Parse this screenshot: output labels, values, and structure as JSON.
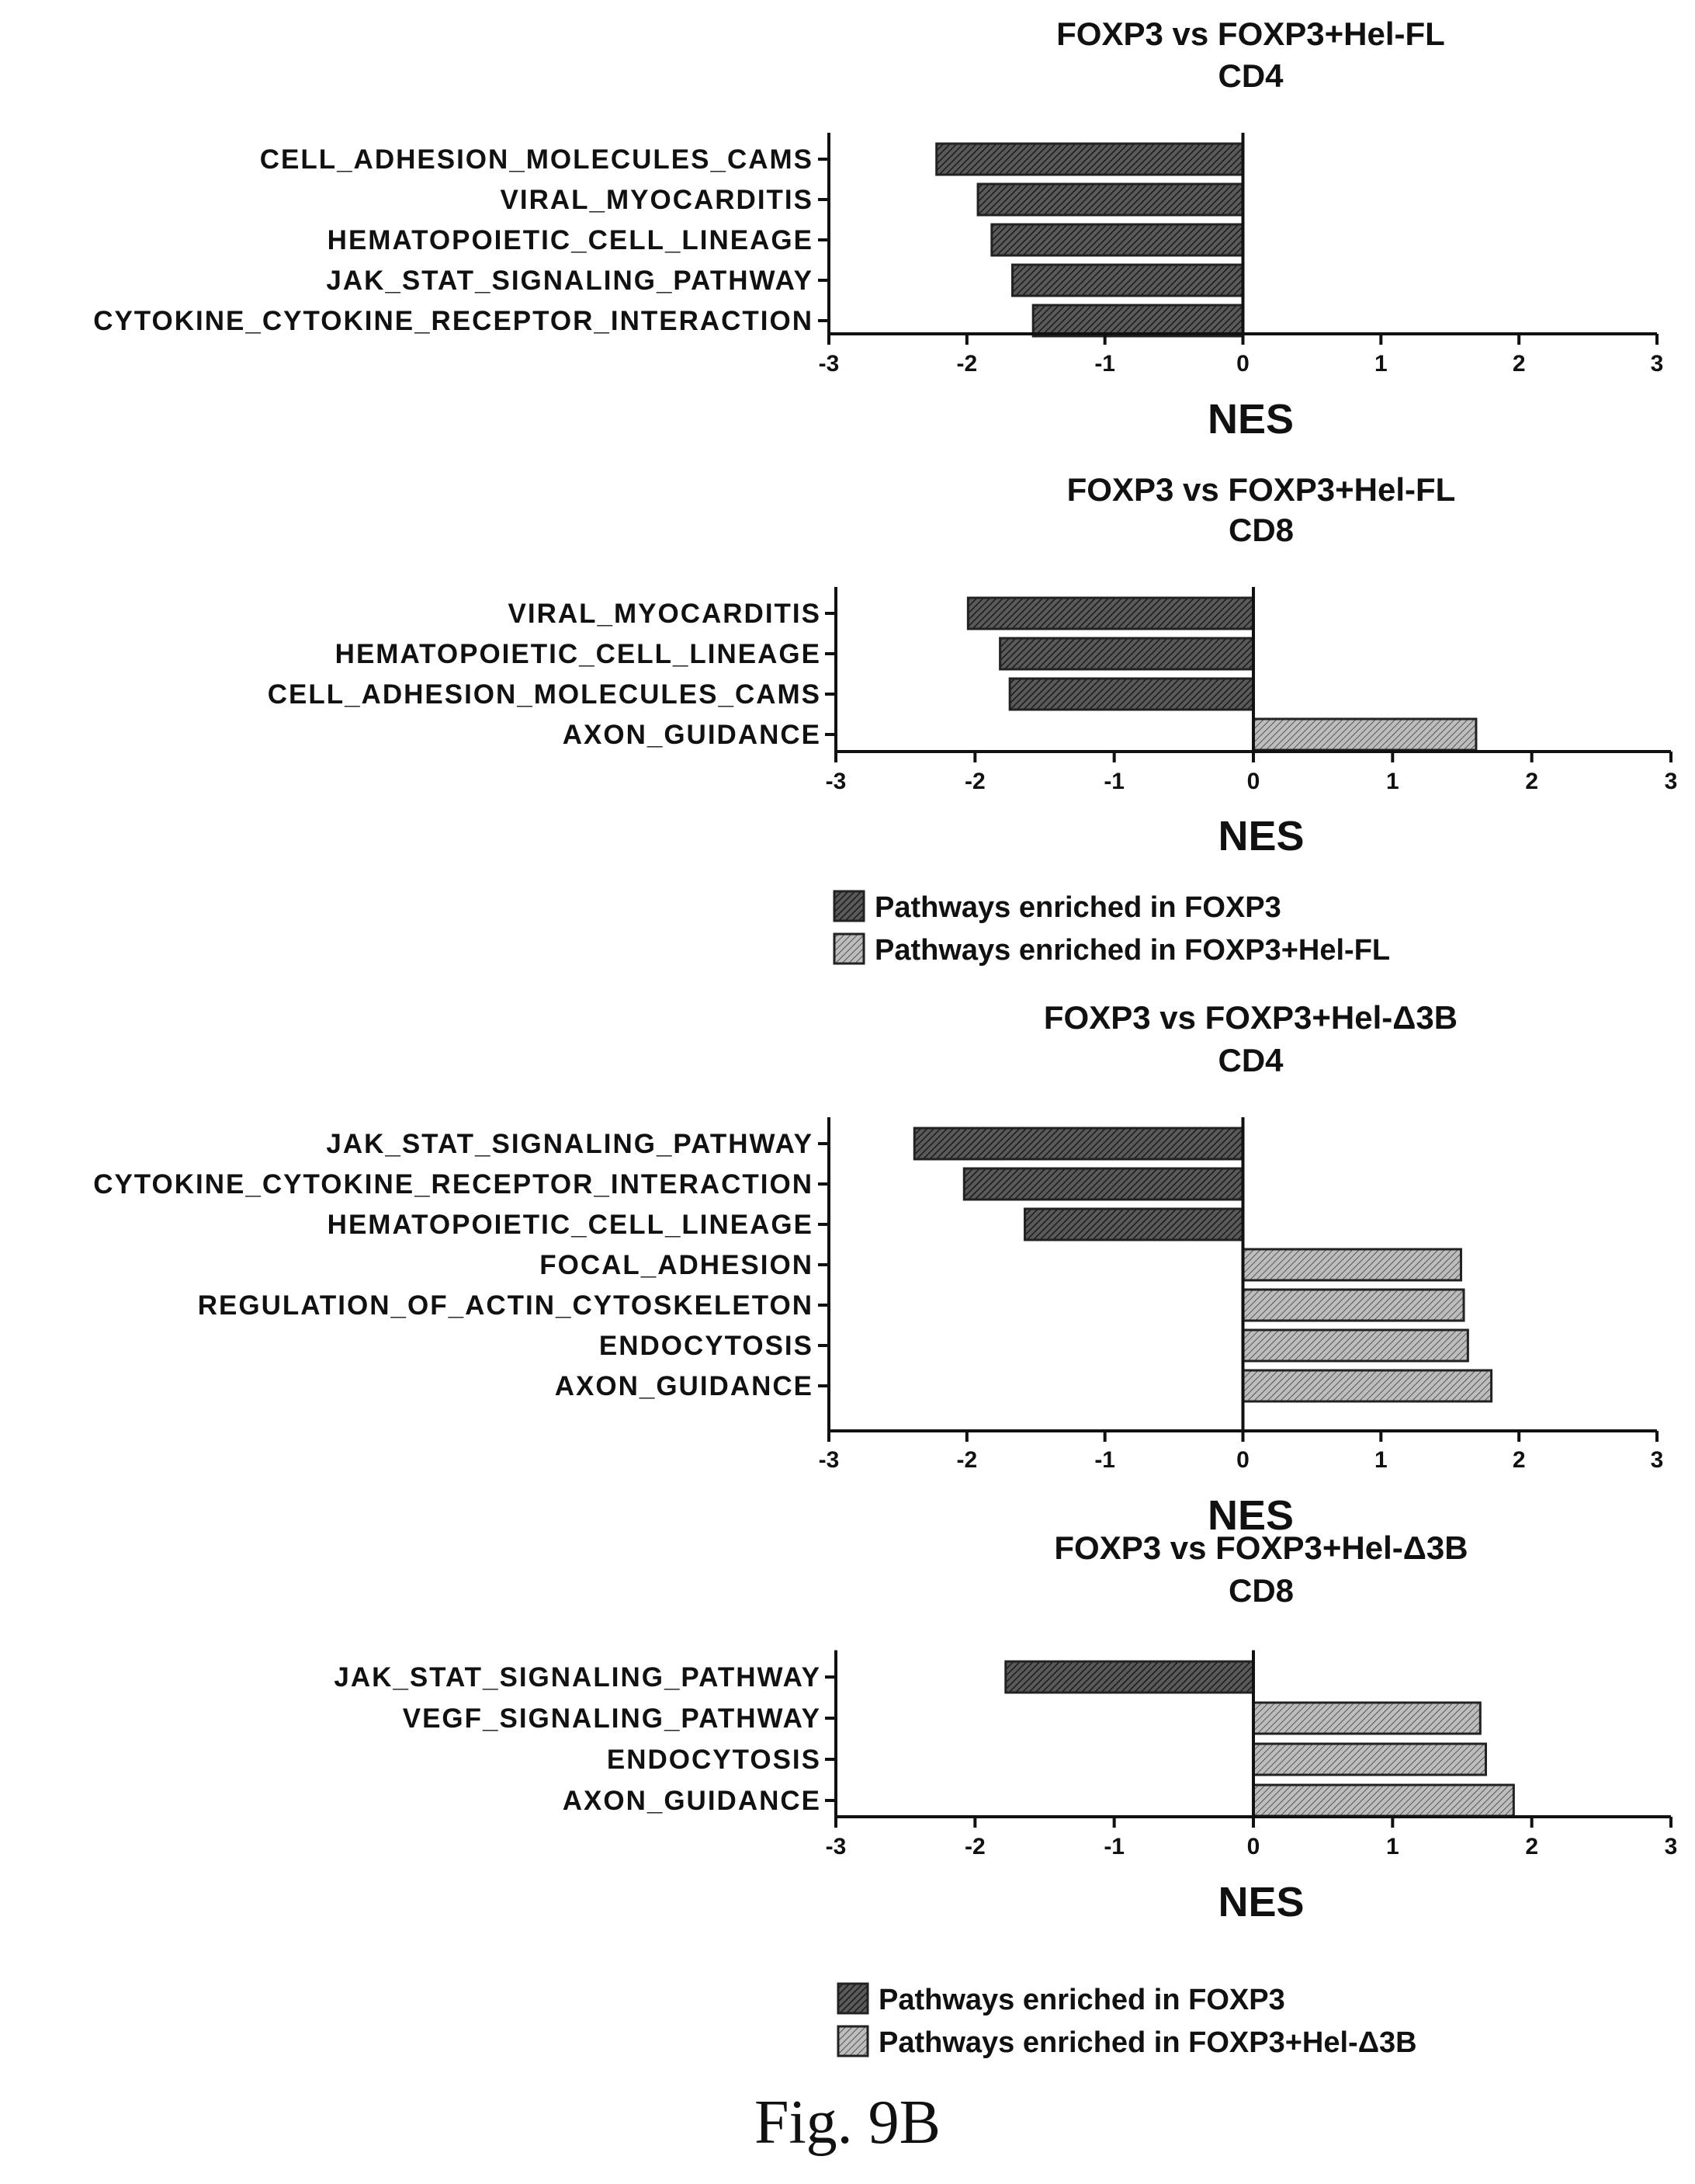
{
  "caption": "Fig. 9B",
  "colors": {
    "dark_bar": "#3a3a3a",
    "light_bar": "#8c8c8c",
    "axis": "#111111"
  },
  "legends": [
    {
      "items": [
        "Pathways enriched in FOXP3",
        "Pathways enriched in FOXP3+Hel-FL"
      ]
    },
    {
      "items": [
        "Pathways enriched in FOXP3",
        "Pathways enriched in FOXP3+Hel-Δ3B"
      ]
    }
  ],
  "chart_data": [
    {
      "type": "bar",
      "orientation": "horizontal",
      "title": "FOXP3 vs FOXP3+Hel-FL",
      "subtitle": "CD4",
      "xlabel": "NES",
      "xlim": [
        -3,
        3
      ],
      "ticks": [
        -3,
        -2,
        -1,
        0,
        1,
        2,
        3
      ],
      "categories": [
        "CELL_ADHESION_MOLECULES_CAMS",
        "VIRAL_MYOCARDITIS",
        "HEMATOPOIETIC_CELL_LINEAGE",
        "JAK_STAT_SIGNALING_PATHWAY",
        "CYTOKINE_CYTOKINE_RECEPTOR_INTERACTION"
      ],
      "values": [
        -2.22,
        -1.92,
        -1.82,
        -1.67,
        -1.52
      ]
    },
    {
      "type": "bar",
      "orientation": "horizontal",
      "title": "FOXP3 vs FOXP3+Hel-FL",
      "subtitle": "CD8",
      "xlabel": "NES",
      "xlim": [
        -3,
        3
      ],
      "ticks": [
        -3,
        -2,
        -1,
        0,
        1,
        2,
        3
      ],
      "categories": [
        "VIRAL_MYOCARDITIS",
        "HEMATOPOIETIC_CELL_LINEAGE",
        "CELL_ADHESION_MOLECULES_CAMS",
        "AXON_GUIDANCE"
      ],
      "values": [
        -2.05,
        -1.82,
        -1.75,
        1.6
      ]
    },
    {
      "type": "bar",
      "orientation": "horizontal",
      "title": "FOXP3 vs FOXP3+Hel-Δ3B",
      "subtitle": "CD4",
      "xlabel": "NES",
      "xlim": [
        -3,
        3
      ],
      "ticks": [
        -3,
        -2,
        -1,
        0,
        1,
        2,
        3
      ],
      "categories": [
        "JAK_STAT_SIGNALING_PATHWAY",
        "CYTOKINE_CYTOKINE_RECEPTOR_INTERACTION",
        "HEMATOPOIETIC_CELL_LINEAGE",
        "FOCAL_ADHESION",
        "REGULATION_OF_ACTIN_CYTOSKELETON",
        "ENDOCYTOSIS",
        "AXON_GUIDANCE"
      ],
      "values": [
        -2.38,
        -2.02,
        -1.58,
        1.58,
        1.6,
        1.63,
        1.8
      ]
    },
    {
      "type": "bar",
      "orientation": "horizontal",
      "title": "FOXP3 vs FOXP3+Hel-Δ3B",
      "subtitle": "CD8",
      "xlabel": "NES",
      "xlim": [
        -3,
        3
      ],
      "ticks": [
        -3,
        -2,
        -1,
        0,
        1,
        2,
        3
      ],
      "categories": [
        "JAK_STAT_SIGNALING_PATHWAY",
        "VEGF_SIGNALING_PATHWAY",
        "ENDOCYTOSIS",
        "AXON_GUIDANCE"
      ],
      "values": [
        -1.78,
        1.63,
        1.67,
        1.87
      ]
    }
  ]
}
